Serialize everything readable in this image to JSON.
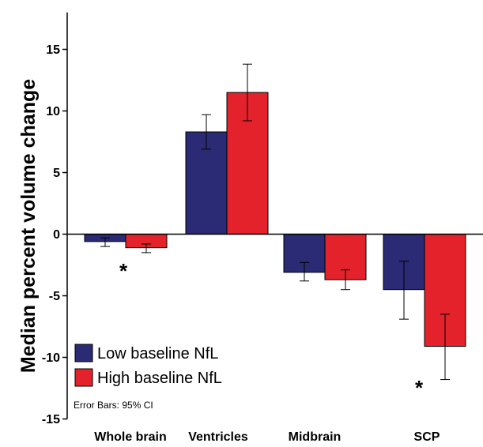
{
  "chart_data": {
    "type": "bar",
    "ylabel": "Median percent volume change",
    "xlabel": "",
    "ylim": [
      -15,
      18
    ],
    "yticks": [
      15,
      10,
      5,
      0,
      -5,
      -10,
      -15
    ],
    "categories": [
      "Whole brain",
      "Ventricles",
      "Midbrain",
      "SCP"
    ],
    "series": [
      {
        "name": "Low baseline NfL",
        "color": "#2b2a74",
        "values": [
          -0.6,
          8.3,
          -3.1,
          -4.5
        ],
        "ci_low": [
          -1.0,
          6.9,
          -3.8,
          -6.9
        ],
        "ci_high": [
          -0.3,
          9.7,
          -2.3,
          -2.2
        ]
      },
      {
        "name": "High baseline NfL",
        "color": "#e3222b",
        "values": [
          -1.1,
          11.5,
          -3.7,
          -9.1
        ],
        "ci_low": [
          -1.5,
          9.2,
          -4.5,
          -11.8
        ],
        "ci_high": [
          -0.8,
          13.8,
          -2.9,
          -6.5
        ]
      }
    ],
    "annotations": [
      {
        "text": "*",
        "category": "Whole brain"
      },
      {
        "text": "*",
        "category": "SCP"
      }
    ],
    "note": "Error Bars: 95% CI",
    "legend_position": "bottom-left",
    "grid": false
  }
}
